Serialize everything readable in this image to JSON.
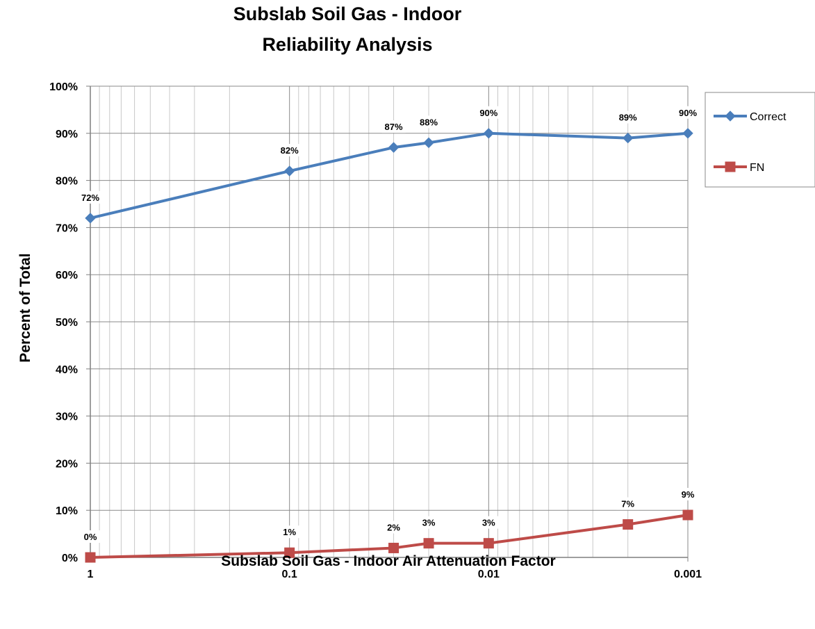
{
  "chart_data": {
    "type": "line",
    "title_lines": [
      "Subslab Soil Gas - Indoor",
      "Reliability Analysis"
    ],
    "xlabel": "Subslab Soil Gas - Indoor Air Attenuation Factor",
    "ylabel": "Percent of Total",
    "x_scale": "log",
    "x_reversed": true,
    "xlim": [
      1,
      0.001
    ],
    "ylim": [
      0,
      100
    ],
    "x_ticks": [
      {
        "value": 1,
        "label": "1"
      },
      {
        "value": 0.1,
        "label": "0.1"
      },
      {
        "value": 0.01,
        "label": "0.01"
      },
      {
        "value": 0.001,
        "label": "0.001"
      }
    ],
    "y_ticks": [
      {
        "value": 0,
        "label": "0%"
      },
      {
        "value": 10,
        "label": "10%"
      },
      {
        "value": 20,
        "label": "20%"
      },
      {
        "value": 30,
        "label": "30%"
      },
      {
        "value": 40,
        "label": "40%"
      },
      {
        "value": 50,
        "label": "50%"
      },
      {
        "value": 60,
        "label": "60%"
      },
      {
        "value": 70,
        "label": "70%"
      },
      {
        "value": 80,
        "label": "80%"
      },
      {
        "value": 90,
        "label": "90%"
      },
      {
        "value": 100,
        "label": "100%"
      }
    ],
    "grid": true,
    "legend_position": "top-right",
    "series": [
      {
        "name": "Correct",
        "color": "#4a7ebb",
        "marker": "diamond",
        "points": [
          {
            "x": 1,
            "y": 72,
            "label": "72%"
          },
          {
            "x": 0.1,
            "y": 82,
            "label": "82%"
          },
          {
            "x": 0.03,
            "y": 87,
            "label": "87%"
          },
          {
            "x": 0.02,
            "y": 88,
            "label": "88%"
          },
          {
            "x": 0.01,
            "y": 90,
            "label": "90%"
          },
          {
            "x": 0.002,
            "y": 89,
            "label": "89%"
          },
          {
            "x": 0.001,
            "y": 90,
            "label": "90%"
          }
        ]
      },
      {
        "name": "FN",
        "color": "#be4b48",
        "marker": "square",
        "points": [
          {
            "x": 1,
            "y": 0,
            "label": "0%"
          },
          {
            "x": 0.1,
            "y": 1,
            "label": "1%"
          },
          {
            "x": 0.03,
            "y": 2,
            "label": "2%"
          },
          {
            "x": 0.02,
            "y": 3,
            "label": "3%"
          },
          {
            "x": 0.01,
            "y": 3,
            "label": "3%"
          },
          {
            "x": 0.002,
            "y": 7,
            "label": "7%"
          },
          {
            "x": 0.001,
            "y": 9,
            "label": "9%"
          }
        ]
      }
    ]
  }
}
